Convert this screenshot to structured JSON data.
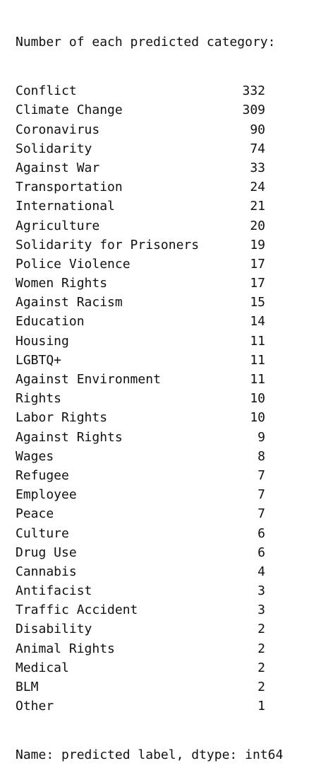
{
  "output": {
    "header": "Number of each predicted category:",
    "rows": [
      {
        "label": "Conflict",
        "count": "332"
      },
      {
        "label": "Climate Change",
        "count": "309"
      },
      {
        "label": "Coronavirus",
        "count": "90"
      },
      {
        "label": "Solidarity",
        "count": "74"
      },
      {
        "label": "Against War",
        "count": "33"
      },
      {
        "label": "Transportation",
        "count": "24"
      },
      {
        "label": "International",
        "count": "21"
      },
      {
        "label": "Agriculture",
        "count": "20"
      },
      {
        "label": "Solidarity for Prisoners",
        "count": "19"
      },
      {
        "label": "Police Violence",
        "count": "17"
      },
      {
        "label": "Women Rights",
        "count": "17"
      },
      {
        "label": "Against Racism",
        "count": "15"
      },
      {
        "label": "Education",
        "count": "14"
      },
      {
        "label": "Housing",
        "count": "11"
      },
      {
        "label": "LGBTQ+",
        "count": "11"
      },
      {
        "label": "Against Environment",
        "count": "11"
      },
      {
        "label": "Rights",
        "count": "10"
      },
      {
        "label": "Labor Rights",
        "count": "10"
      },
      {
        "label": "Against Rights",
        "count": "9"
      },
      {
        "label": "Wages",
        "count": "8"
      },
      {
        "label": "Refugee",
        "count": "7"
      },
      {
        "label": "Employee",
        "count": "7"
      },
      {
        "label": "Peace",
        "count": "7"
      },
      {
        "label": "Culture",
        "count": "6"
      },
      {
        "label": "Drug Use",
        "count": "6"
      },
      {
        "label": "Cannabis",
        "count": "4"
      },
      {
        "label": "Antifacist",
        "count": "3"
      },
      {
        "label": "Traffic Accident",
        "count": "3"
      },
      {
        "label": "Disability",
        "count": "2"
      },
      {
        "label": "Animal Rights",
        "count": "2"
      },
      {
        "label": "Medical",
        "count": "2"
      },
      {
        "label": "BLM",
        "count": "2"
      },
      {
        "label": "Other",
        "count": "1"
      }
    ],
    "footer": "Name: predicted label, dtype: int64"
  }
}
